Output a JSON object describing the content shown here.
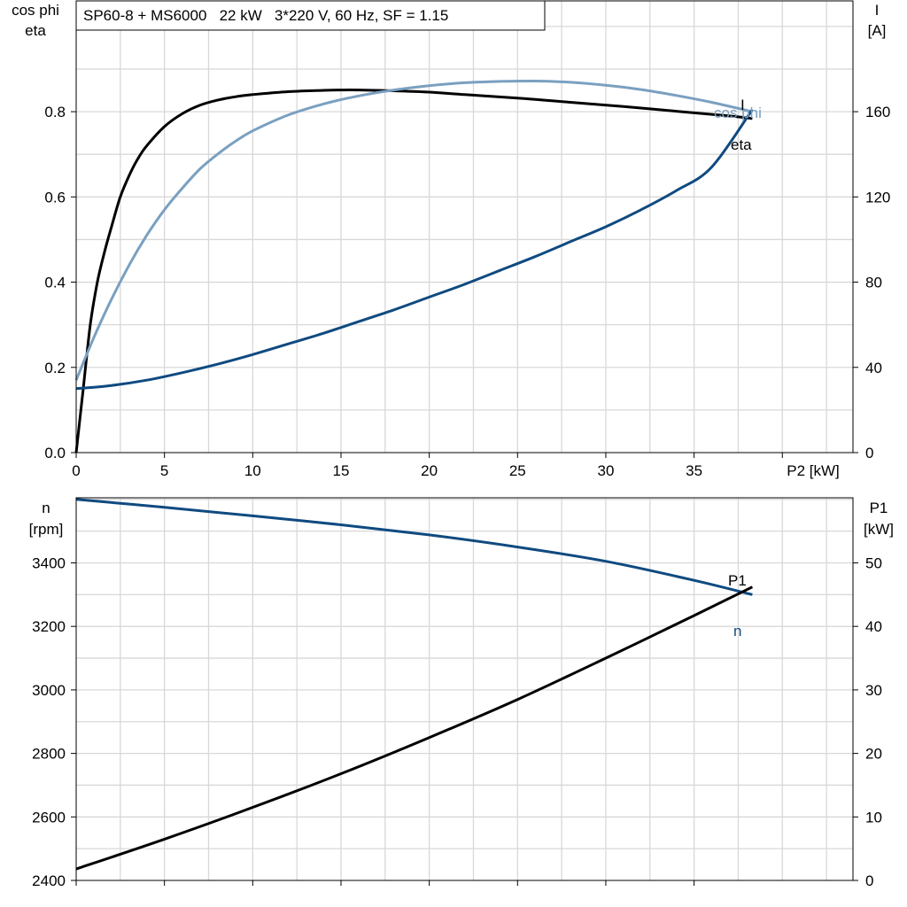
{
  "chart_data": [
    {
      "type": "line",
      "title": "SP60-8 + MS6000   22 kW   3*220 V, 60 Hz, SF = 1.15",
      "xlabel": "P2 [kW]",
      "ylabel_left": [
        "cos phi",
        "eta"
      ],
      "ylabel_right": [
        "I",
        "[A]"
      ],
      "xlim": [
        0,
        44
      ],
      "ylim_left": [
        0,
        1.06
      ],
      "ylim_right": [
        0,
        212
      ],
      "x_ticks": [
        0,
        5,
        10,
        15,
        20,
        25,
        30,
        35
      ],
      "y_ticks_left": [
        0.0,
        0.2,
        0.4,
        0.6,
        0.8
      ],
      "y_tick_labels_left": [
        "0.0",
        "0.2",
        "0.4",
        "0.6",
        "0.8"
      ],
      "y_ticks_right": [
        0,
        40,
        80,
        120,
        160
      ],
      "grid": true,
      "series": [
        {
          "name": "eta",
          "axis": "left",
          "color": "#000000",
          "x": [
            0,
            0.4,
            0.8,
            1.2,
            1.6,
            2.0,
            2.5,
            3.0,
            3.5,
            4.0,
            5.0,
            6.0,
            7.0,
            8.0,
            9.0,
            10.0,
            12.0,
            14.0,
            15.0,
            16.0,
            18.0,
            20.0,
            22.0,
            25.0,
            28.0,
            31.0,
            34.0,
            37.0,
            38.3
          ],
          "y": [
            0.0,
            0.15,
            0.3,
            0.4,
            0.47,
            0.53,
            0.6,
            0.65,
            0.69,
            0.72,
            0.765,
            0.795,
            0.815,
            0.827,
            0.835,
            0.84,
            0.847,
            0.85,
            0.851,
            0.851,
            0.849,
            0.846,
            0.84,
            0.832,
            0.822,
            0.812,
            0.801,
            0.79,
            0.784
          ]
        },
        {
          "name": "cos phi",
          "axis": "left",
          "color": "#7aa0c0",
          "x": [
            0,
            1,
            2,
            3,
            4,
            5,
            6,
            7,
            8,
            9,
            10,
            12,
            14,
            16,
            18,
            20,
            22,
            24,
            26,
            28,
            30,
            32,
            34,
            36,
            38.3
          ],
          "y": [
            0.17,
            0.27,
            0.36,
            0.44,
            0.51,
            0.57,
            0.62,
            0.665,
            0.7,
            0.73,
            0.755,
            0.792,
            0.818,
            0.837,
            0.851,
            0.861,
            0.868,
            0.871,
            0.872,
            0.869,
            0.862,
            0.852,
            0.838,
            0.822,
            0.8
          ]
        },
        {
          "name": "I",
          "axis": "right",
          "color": "#0f4a80",
          "x": [
            0,
            2,
            4,
            6,
            8,
            10,
            12,
            14,
            16,
            18,
            20,
            22,
            24,
            26,
            28,
            30,
            32,
            34,
            36,
            38.3
          ],
          "y": [
            30,
            31.5,
            34,
            37.5,
            41.5,
            46,
            51,
            56,
            61.5,
            67,
            73,
            79,
            85.5,
            92,
            99,
            106,
            114,
            123,
            134,
            161
          ]
        }
      ]
    },
    {
      "type": "line",
      "xlim": [
        0,
        44
      ],
      "ylabel_left": [
        "n",
        "[rpm]"
      ],
      "ylabel_right": [
        "P1",
        "[kW]"
      ],
      "ylim_left": [
        2400,
        3605
      ],
      "ylim_right": [
        0,
        60.25
      ],
      "y_ticks_left": [
        2400,
        2600,
        2800,
        3000,
        3200,
        3400
      ],
      "y_ticks_right": [
        0,
        10,
        20,
        30,
        40,
        50
      ],
      "x_ticks": [
        0,
        5,
        10,
        15,
        20,
        25,
        30,
        35
      ],
      "grid": true,
      "series": [
        {
          "name": "n",
          "axis": "left",
          "color": "#0f4a80",
          "x": [
            0,
            5,
            10,
            15,
            20,
            25,
            30,
            35,
            38.3
          ],
          "y": [
            3600,
            3575,
            3548,
            3520,
            3488,
            3450,
            3405,
            3345,
            3300
          ]
        },
        {
          "name": "P1",
          "axis": "right",
          "color": "#000000",
          "x": [
            0,
            5,
            10,
            15,
            20,
            25,
            30,
            35,
            38.3
          ],
          "y": [
            1.8,
            6.5,
            11.5,
            16.8,
            22.5,
            28.5,
            35.0,
            41.7,
            46.2
          ]
        }
      ]
    }
  ]
}
